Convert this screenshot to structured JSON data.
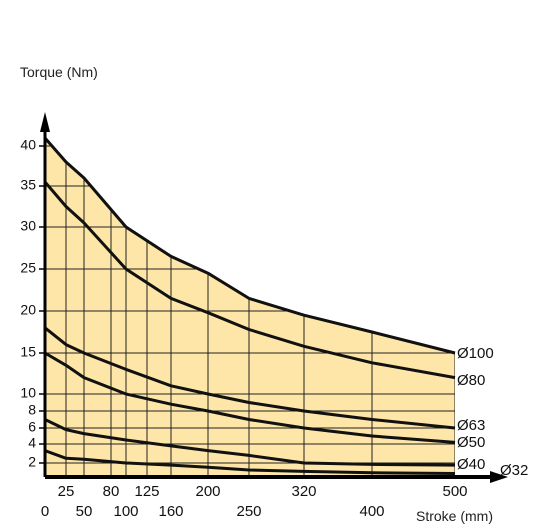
{
  "chart_data": {
    "type": "area",
    "ylabel": "Torque  (Nm)",
    "xlabel": "Stroke (mm)",
    "fill_color": "#fde6a8",
    "line_color": "#111111",
    "xlim": [
      0,
      500
    ],
    "ylim": [
      0,
      42
    ],
    "x_ticks": [
      0,
      25,
      50,
      80,
      100,
      125,
      160,
      200,
      250,
      320,
      400,
      500
    ],
    "x_tick_labels_top": [
      "25",
      "80",
      "125",
      "200",
      "320",
      "500"
    ],
    "x_tick_labels_bottom": [
      "0",
      "50",
      "100",
      "160",
      "250",
      "400"
    ],
    "y_ticks": [
      2,
      4,
      6,
      8,
      10,
      15,
      20,
      25,
      30,
      35,
      40
    ],
    "series": [
      {
        "name": "Ø100",
        "points": [
          [
            0,
            41
          ],
          [
            25,
            38
          ],
          [
            50,
            36
          ],
          [
            100,
            30
          ],
          [
            160,
            26.5
          ],
          [
            200,
            24.5
          ],
          [
            250,
            21.5
          ],
          [
            320,
            19.5
          ],
          [
            400,
            17.5
          ],
          [
            500,
            15
          ]
        ]
      },
      {
        "name": "Ø80",
        "points": [
          [
            0,
            35.5
          ],
          [
            25,
            32.5
          ],
          [
            50,
            30.5
          ],
          [
            100,
            25
          ],
          [
            160,
            21.5
          ],
          [
            200,
            19.8
          ],
          [
            250,
            17.8
          ],
          [
            320,
            15.8
          ],
          [
            400,
            13.8
          ],
          [
            500,
            12
          ]
        ]
      },
      {
        "name": "Ø63",
        "points": [
          [
            0,
            18
          ],
          [
            25,
            16
          ],
          [
            50,
            15
          ],
          [
            100,
            13
          ],
          [
            160,
            11
          ],
          [
            200,
            10
          ],
          [
            250,
            9
          ],
          [
            320,
            8
          ],
          [
            400,
            7
          ],
          [
            500,
            6
          ]
        ]
      },
      {
        "name": "Ø50",
        "points": [
          [
            0,
            15
          ],
          [
            25,
            13.5
          ],
          [
            50,
            12
          ],
          [
            100,
            10
          ],
          [
            160,
            8.8
          ],
          [
            200,
            8
          ],
          [
            250,
            7
          ],
          [
            320,
            6
          ],
          [
            400,
            5
          ],
          [
            500,
            4.2
          ]
        ]
      },
      {
        "name": "Ø40",
        "points": [
          [
            0,
            7
          ],
          [
            25,
            5.8
          ],
          [
            50,
            5.3
          ],
          [
            100,
            4.5
          ],
          [
            160,
            3.8
          ],
          [
            200,
            3.3
          ],
          [
            250,
            2.8
          ],
          [
            320,
            2
          ],
          [
            400,
            1.8
          ],
          [
            500,
            1.7
          ]
        ]
      },
      {
        "name": "Ø32",
        "points": [
          [
            0,
            3.3
          ],
          [
            25,
            2.5
          ],
          [
            50,
            2.4
          ],
          [
            100,
            2
          ],
          [
            160,
            1.7
          ],
          [
            200,
            1.4
          ],
          [
            250,
            1
          ],
          [
            320,
            0.8
          ],
          [
            400,
            0.6
          ],
          [
            500,
            0.5
          ]
        ]
      }
    ]
  }
}
